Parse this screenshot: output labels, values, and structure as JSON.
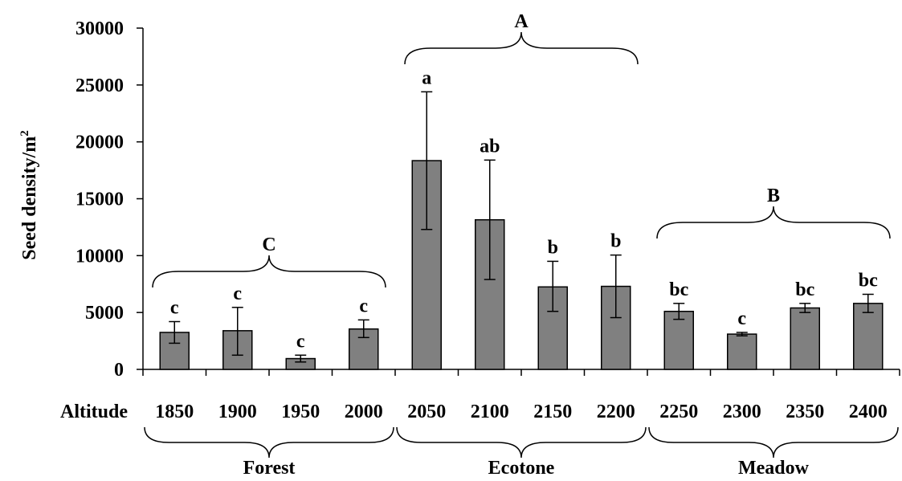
{
  "chart_data": {
    "type": "bar",
    "ylabel": "Seed density/m",
    "ylabel_superscript": "2",
    "xlabel": "Altitude",
    "ylim": [
      0,
      30000
    ],
    "yticks": [
      0,
      5000,
      10000,
      15000,
      20000,
      25000,
      30000
    ],
    "grid": false,
    "bar_color": "#808080",
    "categories": [
      "1850",
      "1900",
      "1950",
      "2000",
      "2050",
      "2100",
      "2150",
      "2200",
      "2250",
      "2300",
      "2350",
      "2400"
    ],
    "values": [
      3250,
      3400,
      950,
      3550,
      18350,
      13150,
      7250,
      7300,
      5100,
      3100,
      5400,
      5800
    ],
    "error_low": [
      950,
      2150,
      300,
      750,
      6050,
      5250,
      2150,
      2750,
      700,
      150,
      400,
      800
    ],
    "error_high": [
      950,
      2050,
      300,
      800,
      6050,
      5250,
      2250,
      2750,
      700,
      150,
      400,
      800
    ],
    "bar_labels": [
      "c",
      "c",
      "c",
      "c",
      "a",
      "ab",
      "b",
      "b",
      "bc",
      "c",
      "bc",
      "bc"
    ],
    "groups": [
      {
        "label": "C",
        "start": 0,
        "end": 3
      },
      {
        "label": "A",
        "start": 4,
        "end": 7
      },
      {
        "label": "B",
        "start": 8,
        "end": 11
      }
    ],
    "zones": [
      {
        "label": "Forest",
        "start": 0,
        "end": 3
      },
      {
        "label": "Ecotone",
        "start": 4,
        "end": 7
      },
      {
        "label": "Meadow",
        "start": 8,
        "end": 11
      }
    ]
  }
}
